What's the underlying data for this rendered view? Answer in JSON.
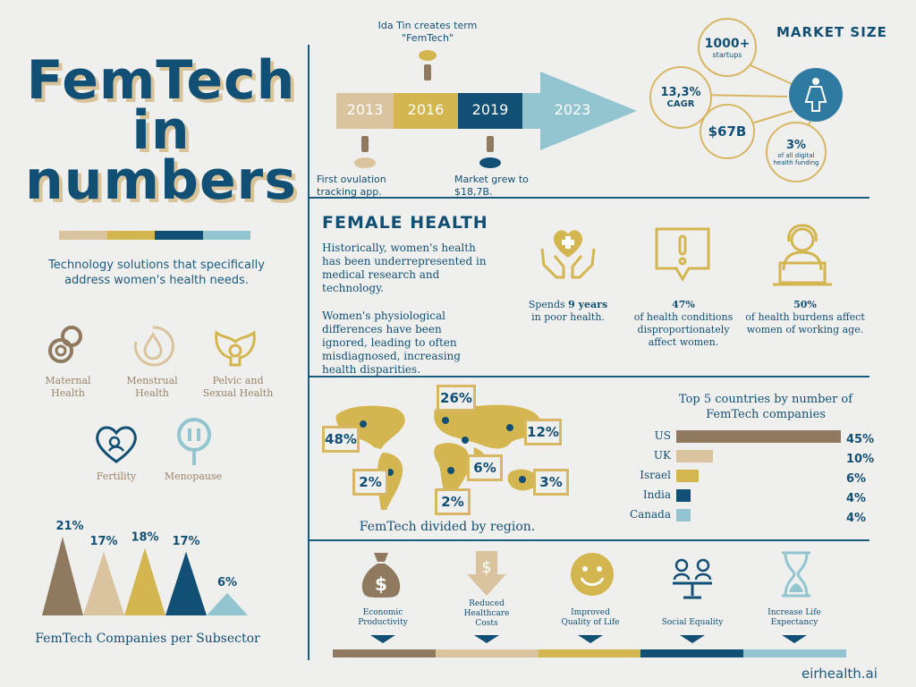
{
  "left": {
    "title_line1": "FemTech",
    "title_line2": "in",
    "title_line3": "numbers",
    "subtitle": "Technology solutions that specifically address women's health needs.",
    "categories": [
      {
        "label": "Maternal\nHealth",
        "icon": "pacifier-icon"
      },
      {
        "label": "Menstrual\nHealth",
        "icon": "drop-cycle-icon"
      },
      {
        "label": "Pelvic and\nSexual Health",
        "icon": "pelvis-icon"
      },
      {
        "label": "Fertility",
        "icon": "baby-heart-icon"
      },
      {
        "label": "Menopause",
        "icon": "female-pause-icon"
      }
    ],
    "chart_caption": "FemTech Companies per Subsector"
  },
  "chart_data": {
    "type": "bar",
    "categories": [
      "Maternal Health",
      "Menstrual Health",
      "Pelvic and Sexual Health",
      "Fertility",
      "Menopause"
    ],
    "values": [
      21,
      17,
      18,
      17,
      6
    ],
    "value_labels": [
      "21%",
      "17%",
      "18%",
      "17%",
      "6%"
    ],
    "colors": [
      "#8f7a5f",
      "#d9c49f",
      "#d4b650",
      "#124f74",
      "#93c5d1"
    ],
    "title": "FemTech Companies per Subsector"
  },
  "timeline": {
    "years": [
      "2013",
      "2016",
      "2019",
      "2023"
    ],
    "note_2016": "Ida Tin creates term \"FemTech\"",
    "note_2013": "First ovulation tracking app.",
    "note_2019": "Market grew to $18,7B."
  },
  "market": {
    "heading": "MARKET SIZE",
    "startups_value": "1000+",
    "startups_label": "startups",
    "cagr_value": "13,3%",
    "cagr_label": "CAGR",
    "size_value": "$67B",
    "funding_value": "3%",
    "funding_label": "of all digital health funding"
  },
  "female_health": {
    "heading": "FEMALE HEALTH",
    "para1": "Historically, women's health has been underrepresented in medical research and technology.",
    "para2": "Women's physiological differences have been ignored, leading to often misdiagnosed, increasing health disparities.",
    "stat1_pre": "Spends ",
    "stat1_bold": "9 years",
    "stat1_post": "in poor health.",
    "stat2_bold": "47%",
    "stat2_text": "of health conditions disproportionately affect women.",
    "stat3_bold": "50%",
    "stat3_text": "of health burdens affect women of working age."
  },
  "regions": {
    "caption": "FemTech divided by region.",
    "labels": [
      "48%",
      "26%",
      "12%",
      "2%",
      "6%",
      "2%",
      "3%"
    ]
  },
  "countries": {
    "title": "Top 5 countries by number of FemTech companies",
    "names": [
      "US",
      "UK",
      "Israel",
      "India",
      "Canada"
    ],
    "values": [
      45,
      10,
      6,
      4,
      4
    ],
    "labels": [
      "45%",
      "10%",
      "6%",
      "4%",
      "4%"
    ],
    "colors": [
      "#8f7a5f",
      "#d9c49f",
      "#d4b650",
      "#124f74",
      "#93c5d1"
    ]
  },
  "benefits": [
    {
      "label": "Economic\nProductivity",
      "icon": "money-bag-icon"
    },
    {
      "label": "Reduced\nHealthcare\nCosts",
      "icon": "down-arrow-dollar-icon"
    },
    {
      "label": "Improved\nQuality of Life",
      "icon": "smiley-icon"
    },
    {
      "label": "Social Equality",
      "icon": "scales-people-icon"
    },
    {
      "label": "Increase Life\nExpectancy",
      "icon": "hourglass-icon"
    }
  ],
  "footer": {
    "site": "eirhealth.ai"
  }
}
